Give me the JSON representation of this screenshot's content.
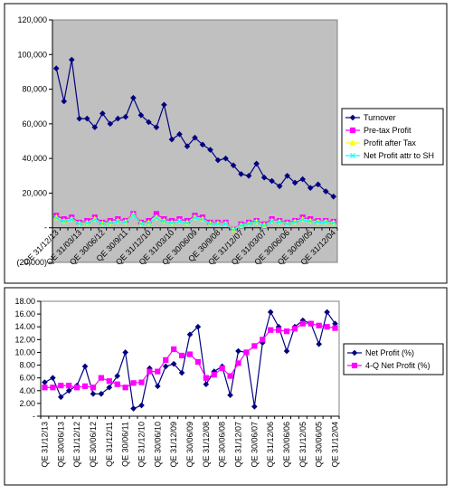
{
  "chart_data": [
    {
      "type": "line",
      "categories": [
        "QE 31/12/13",
        null,
        null,
        "QE 31/03/13",
        null,
        null,
        "QE 30/06/12",
        null,
        null,
        "QE 30/9/11",
        null,
        null,
        "QE 31/12/10",
        null,
        null,
        "QE 31/03/10",
        null,
        null,
        "QE 30/06/09",
        null,
        null,
        "QE 30/9/08",
        null,
        null,
        "QE 31/12/07",
        null,
        null,
        "QE 31/03/07",
        null,
        null,
        "QE 30/06/06",
        null,
        null,
        "QE 30/09/05",
        null,
        null,
        "QE 31/12/04"
      ],
      "series": [
        {
          "name": "Turnover",
          "color": "#000080",
          "marker": "diamond",
          "values": [
            92000,
            73000,
            97000,
            63000,
            63000,
            58000,
            66000,
            60000,
            63000,
            64000,
            75000,
            65000,
            61000,
            58000,
            71000,
            51000,
            54000,
            47000,
            52000,
            48000,
            45000,
            39000,
            40000,
            36000,
            31000,
            30000,
            37000,
            29000,
            27000,
            24000,
            30000,
            26000,
            28000,
            23000,
            25000,
            21000,
            18000
          ]
        },
        {
          "name": "Pre-tax Profit",
          "color": "#ff00ff",
          "marker": "square",
          "values": [
            7000,
            5000,
            6000,
            3000,
            4000,
            6000,
            3000,
            4000,
            5000,
            4000,
            8000,
            3000,
            4000,
            8000,
            5000,
            4000,
            5000,
            4000,
            7000,
            6000,
            3000,
            3000,
            3000,
            -1000,
            2000,
            3000,
            4000,
            2000,
            5000,
            4000,
            3000,
            4000,
            6000,
            5000,
            4000,
            4000,
            3500
          ]
        },
        {
          "name": "Profit after Tax",
          "color": "#ffff00",
          "marker": "triangle",
          "values": [
            6000,
            4000,
            5000,
            2500,
            3000,
            5000,
            2500,
            3000,
            4000,
            3500,
            7500,
            2500,
            3000,
            6000,
            4000,
            3000,
            4000,
            3000,
            6000,
            5000,
            2500,
            2500,
            2500,
            -1000,
            1500,
            2500,
            3500,
            1500,
            4000,
            3500,
            2500,
            3500,
            5000,
            4000,
            3500,
            3500,
            3000
          ]
        },
        {
          "name": "Net Profit attr to SH",
          "color": "#00ffff",
          "marker": "x",
          "values": [
            5700,
            3700,
            4700,
            2200,
            2700,
            4700,
            2200,
            2700,
            3700,
            3200,
            7200,
            2200,
            2700,
            5700,
            3700,
            2700,
            3700,
            2700,
            5700,
            4700,
            2200,
            2200,
            2200,
            -1300,
            1200,
            2200,
            3200,
            1200,
            3700,
            3200,
            2200,
            3200,
            4700,
            3700,
            3200,
            3200,
            2700
          ]
        }
      ],
      "ylim": [
        -20000,
        120000
      ],
      "yticks": [
        {
          "value": 120000,
          "label": "120,000"
        },
        {
          "value": 100000,
          "label": "100,000"
        },
        {
          "value": 80000,
          "label": "80,000"
        },
        {
          "value": 60000,
          "label": "60,000"
        },
        {
          "value": 40000,
          "label": "40,000"
        },
        {
          "value": 20000,
          "label": "20,000"
        },
        {
          "value": 0,
          "label": "-"
        },
        {
          "value": -20000,
          "label": "(20,000)"
        }
      ],
      "plot_background": "#c0c0c0"
    },
    {
      "type": "line",
      "categories": [
        "QE 31/12/13",
        null,
        "QE 30/06/13",
        null,
        "QE 31/12/12",
        null,
        "QE 30/06/12",
        null,
        "QE 31/12/11",
        null,
        "QE 30/06/11",
        null,
        "QE 31/12/10",
        null,
        "QE 30/06/10",
        null,
        "QE 31/12/09",
        null,
        "QE 30/06/09",
        null,
        "QE 31/12/08",
        null,
        "QE 30/06/08",
        null,
        "QE 31/12/07",
        null,
        "QE 30/06/07",
        null,
        "QE 31/12/06",
        null,
        "QE 30/06/06",
        null,
        "QE 31/12/05",
        null,
        "QE 30/06/05",
        null,
        "QE 31/12/04"
      ],
      "series": [
        {
          "name": "Net Profit (%)",
          "color": "#000080",
          "marker": "diamond",
          "values": [
            5.3,
            6.0,
            3.0,
            4.0,
            4.8,
            7.8,
            3.5,
            3.5,
            4.5,
            6.3,
            10.0,
            1.2,
            1.7,
            7.5,
            4.7,
            7.8,
            8.2,
            6.8,
            12.8,
            14.0,
            5.0,
            7.0,
            7.8,
            3.3,
            10.2,
            10.0,
            1.5,
            11.5,
            16.3,
            14.0,
            10.2,
            14.0,
            15.0,
            14.5,
            11.3,
            16.3,
            14.5
          ]
        },
        {
          "name": "4-Q Net Profit (%)",
          "color": "#ff00ff",
          "marker": "square",
          "values": [
            4.5,
            4.5,
            4.8,
            4.8,
            4.5,
            4.7,
            4.5,
            6.0,
            5.5,
            5.0,
            4.5,
            5.2,
            5.3,
            7.0,
            7.0,
            8.8,
            10.5,
            9.5,
            9.7,
            8.5,
            6.0,
            6.5,
            7.5,
            6.3,
            8.3,
            10.0,
            11.0,
            12.0,
            13.5,
            13.5,
            13.3,
            13.7,
            14.5,
            14.5,
            14.2,
            14.0,
            13.8
          ]
        }
      ],
      "ylim": [
        0,
        18
      ],
      "yticks": [
        {
          "value": 18,
          "label": "18.00"
        },
        {
          "value": 16,
          "label": "16.00"
        },
        {
          "value": 14,
          "label": "14.00"
        },
        {
          "value": 12,
          "label": "12.00"
        },
        {
          "value": 10,
          "label": "10.00"
        },
        {
          "value": 8,
          "label": "8.00"
        },
        {
          "value": 6,
          "label": "6.00"
        },
        {
          "value": 4,
          "label": "4.00"
        },
        {
          "value": 2,
          "label": "2.00"
        },
        {
          "value": 0,
          "label": "-"
        }
      ],
      "plot_background": "#ffffff"
    }
  ]
}
